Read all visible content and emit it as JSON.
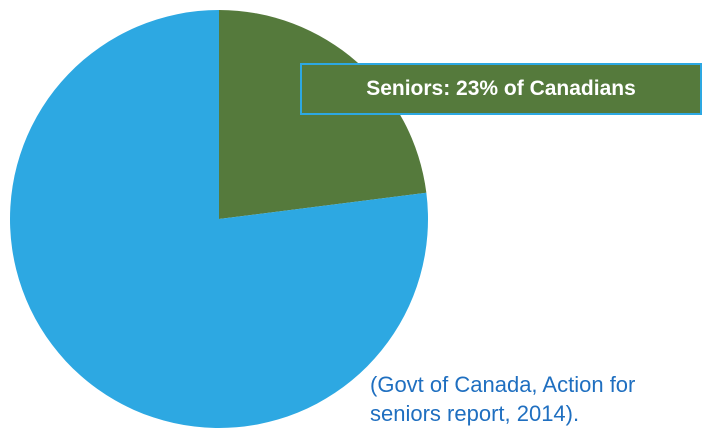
{
  "chart_data": {
    "type": "pie",
    "slices": [
      {
        "label": "Seniors",
        "value": 23,
        "color": "#557a3c"
      },
      {
        "label": "",
        "value": 77,
        "color": "#2da8e2"
      }
    ],
    "annotation": "Seniors: 23% of Canadians",
    "source": "(Govt of Canada, Action for seniors report, 2014)."
  },
  "colors": {
    "callout_bg": "#557a3c",
    "callout_border": "#2da8e2",
    "source_text": "#1f6fc0"
  }
}
